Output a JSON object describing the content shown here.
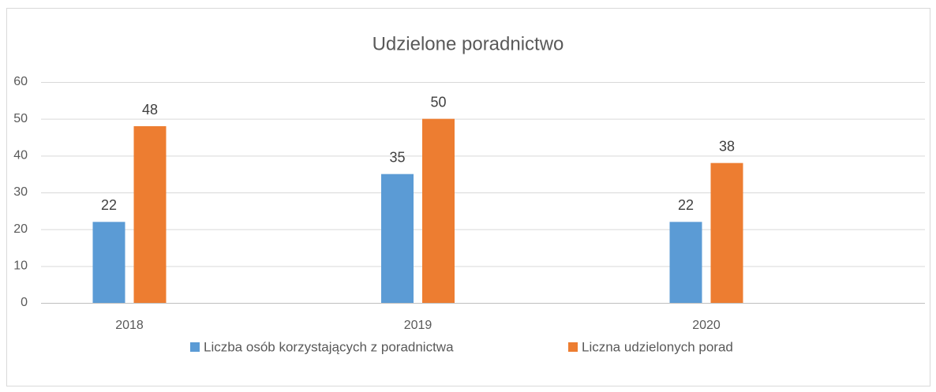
{
  "chart_data": {
    "type": "bar",
    "title": "Udzielone poradnictwo",
    "categories": [
      "2018",
      "2019",
      "2020"
    ],
    "series": [
      {
        "name": "Liczba osób korzystających z poradnictwa",
        "color": "#5b9bd5",
        "values": [
          22,
          35,
          22
        ]
      },
      {
        "name": "Liczna udzielonych porad",
        "color": "#ed7d31",
        "values": [
          48,
          50,
          38
        ]
      }
    ],
    "ylim": [
      0,
      60
    ],
    "yticks": [
      0,
      10,
      20,
      30,
      40,
      50,
      60
    ],
    "grid": true,
    "legend": "bottom"
  }
}
